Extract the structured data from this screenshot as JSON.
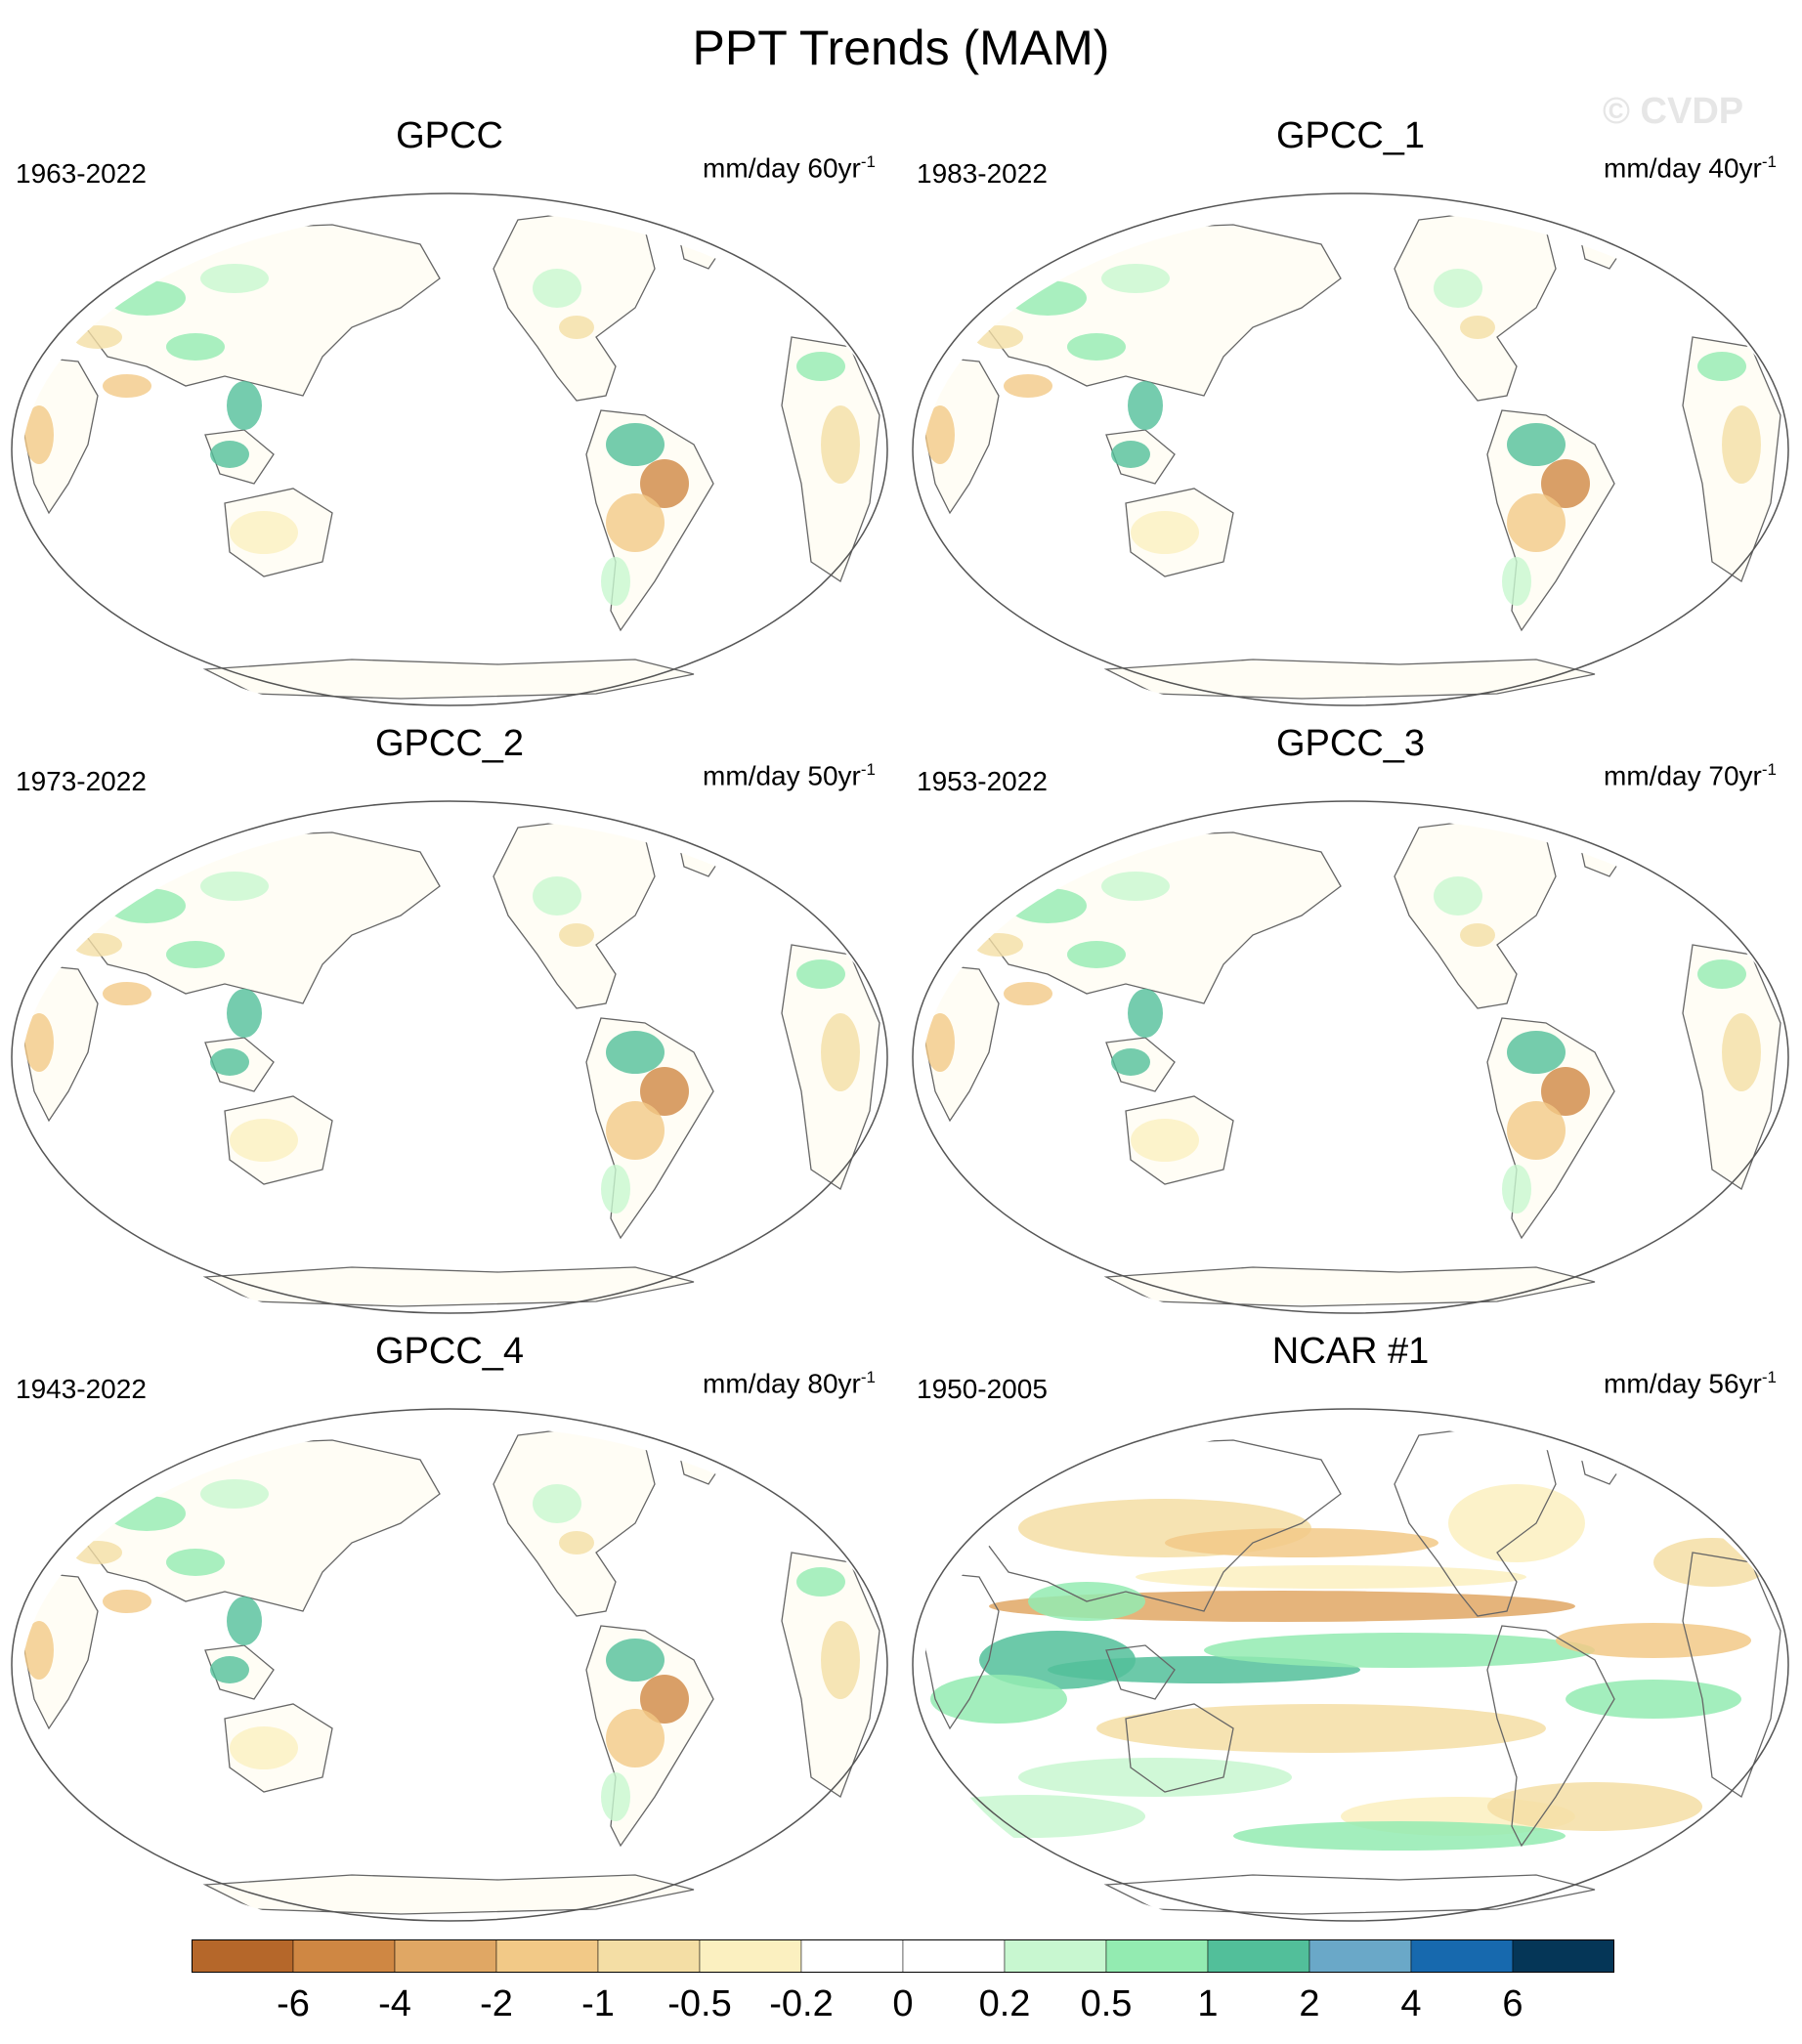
{
  "title": "PPT Trends (MAM)",
  "watermark": "© CVDP",
  "panels": [
    {
      "name": "GPCC",
      "years": "1963-2022",
      "units": "mm/day 60yr",
      "exp": "-1"
    },
    {
      "name": "GPCC_1",
      "years": "1983-2022",
      "units": "mm/day 40yr",
      "exp": "-1"
    },
    {
      "name": "GPCC_2",
      "years": "1973-2022",
      "units": "mm/day 50yr",
      "exp": "-1"
    },
    {
      "name": "GPCC_3",
      "years": "1953-2022",
      "units": "mm/day 70yr",
      "exp": "-1"
    },
    {
      "name": "GPCC_4",
      "years": "1943-2022",
      "units": "mm/day 80yr",
      "exp": "-1"
    },
    {
      "name": "NCAR #1",
      "years": "1950-2005",
      "units": "mm/day 56yr",
      "exp": "-1"
    }
  ],
  "colorbar": {
    "labels": [
      "-6",
      "-4",
      "-2",
      "-1",
      "-0.5",
      "-0.2",
      "0",
      "0.2",
      "0.5",
      "1",
      "2",
      "4",
      "6"
    ],
    "colors": [
      "#b5672a",
      "#cf8743",
      "#e0a764",
      "#f2c987",
      "#f4dea5",
      "#fbf0c0",
      "#ffffff",
      "#ffffff",
      "#c8f7d0",
      "#93ebb1",
      "#52bf9a",
      "#6aa8c8",
      "#1769ae",
      "#053657"
    ]
  }
}
